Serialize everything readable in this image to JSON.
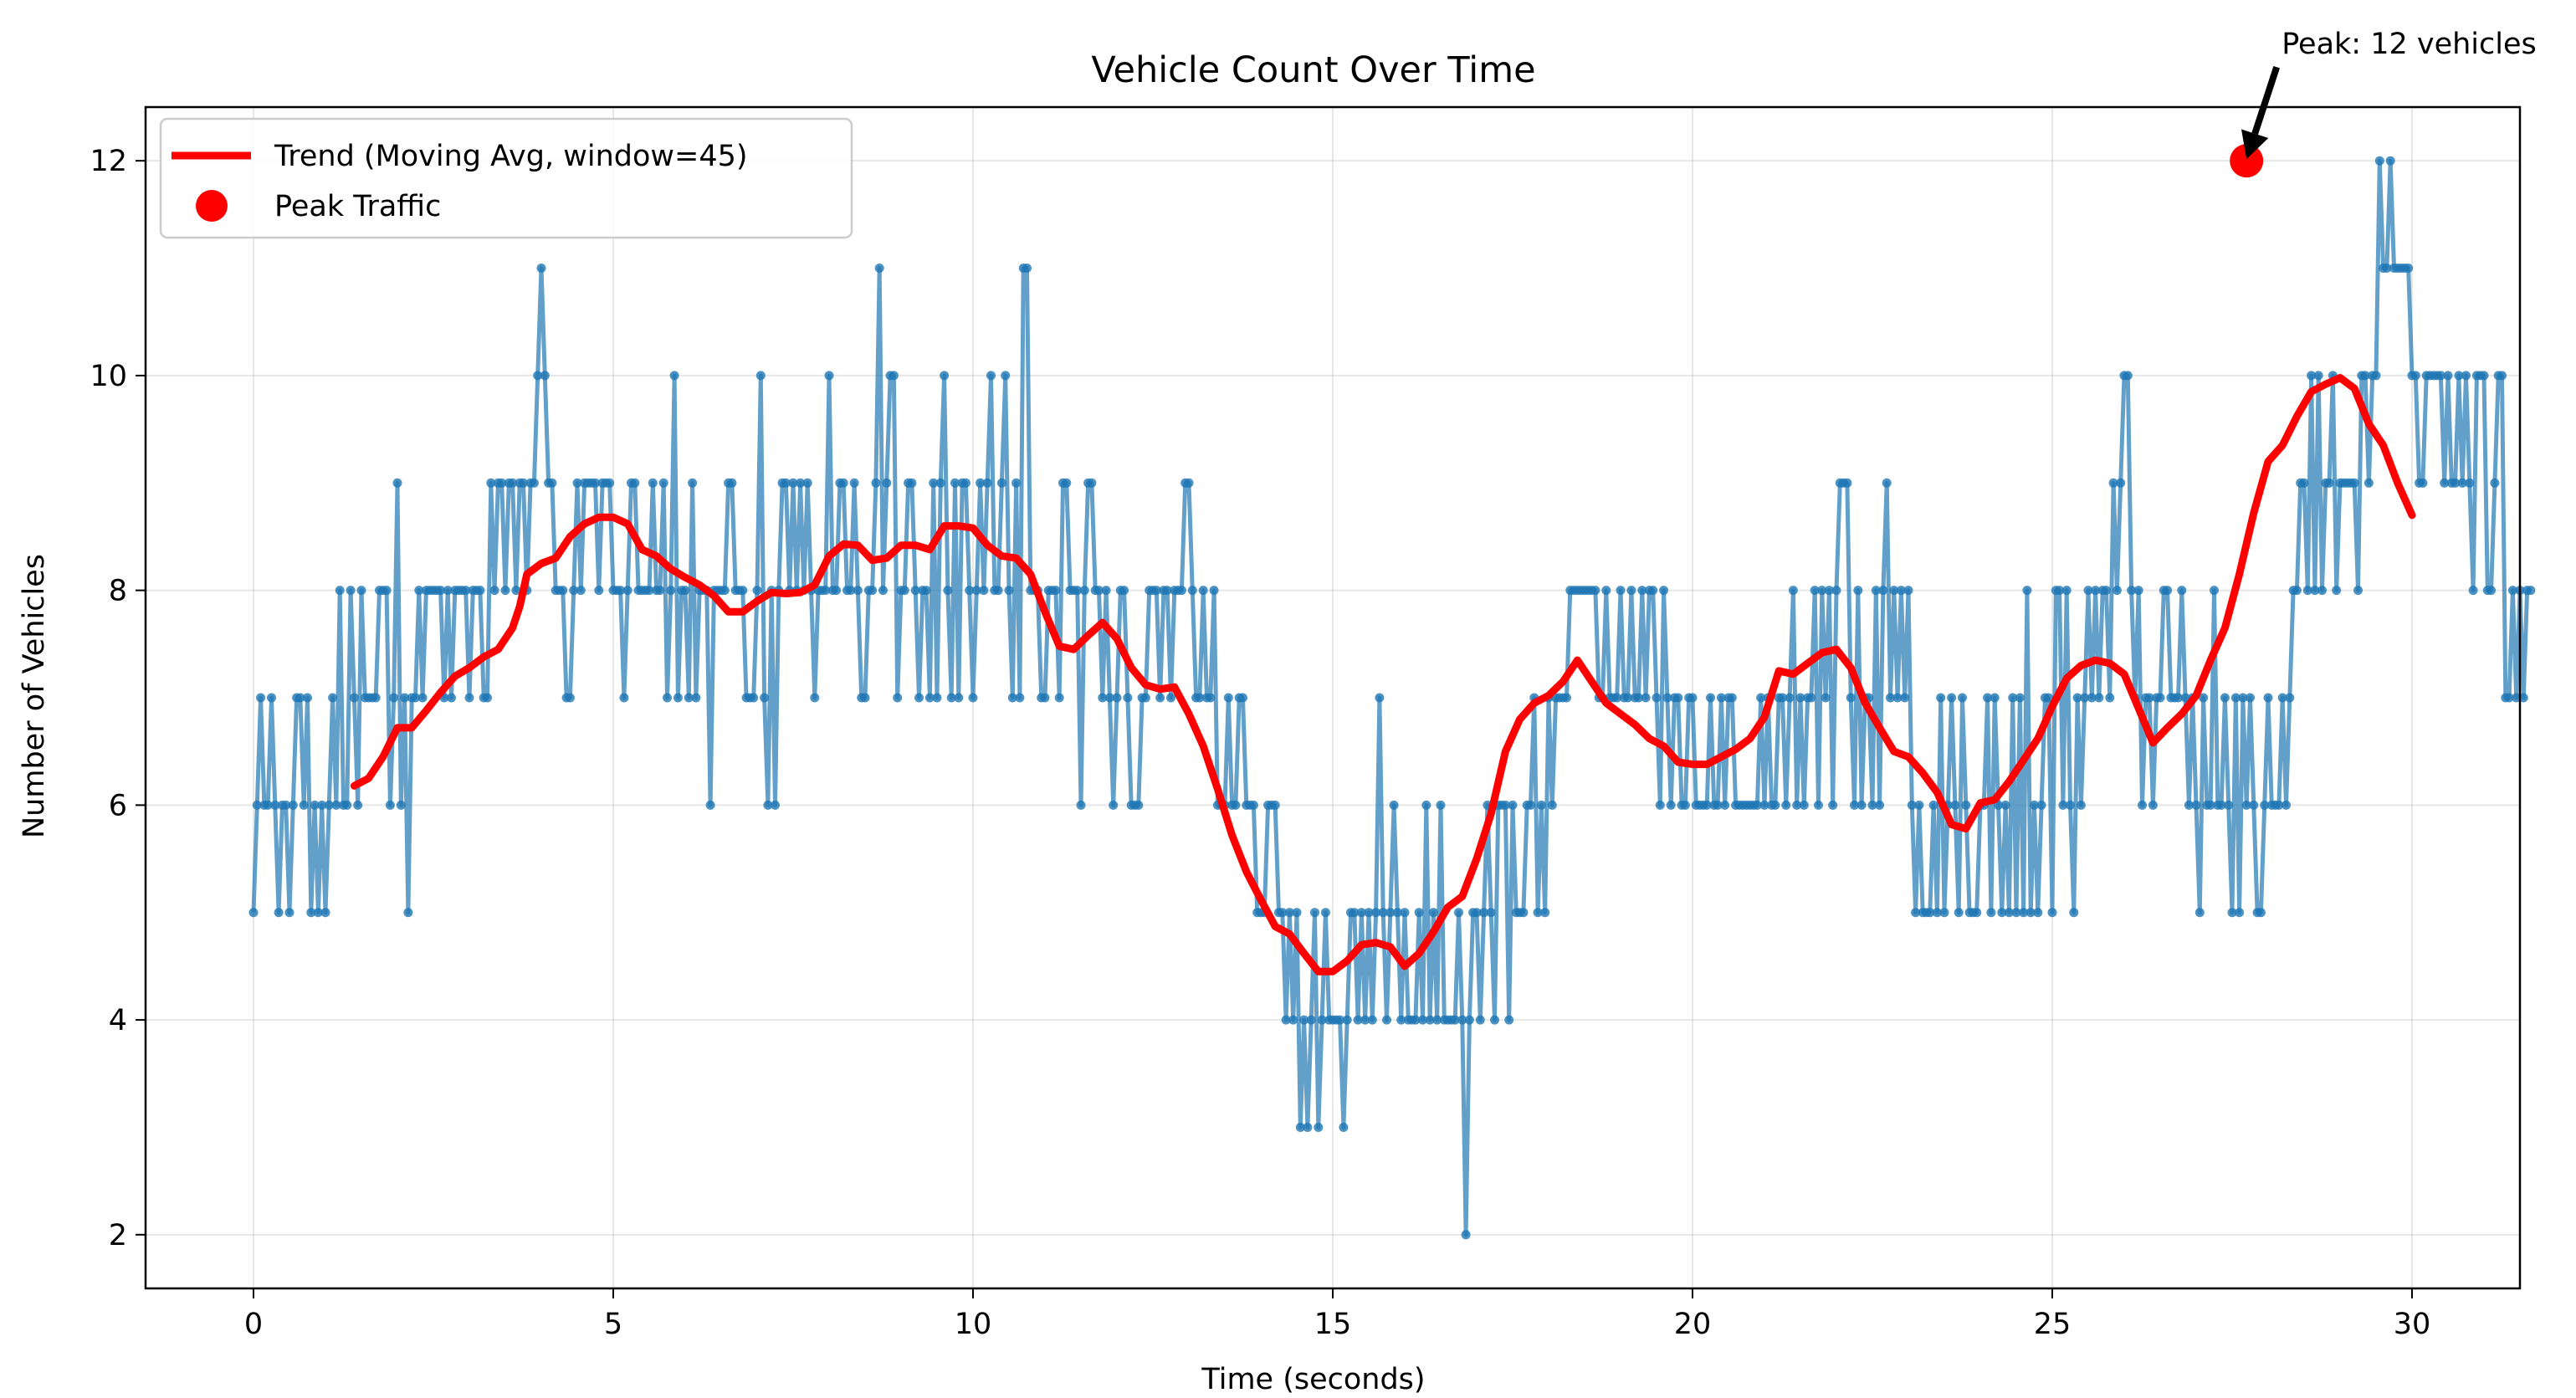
{
  "chart_data": {
    "type": "line",
    "title": "Vehicle Count Over Time",
    "xlabel": "Time (seconds)",
    "ylabel": "Number of Vehicles",
    "xlim": [
      -1.5,
      31.5
    ],
    "ylim": [
      1.5,
      12.5
    ],
    "x_ticks": [
      0,
      5,
      10,
      15,
      20,
      25,
      30
    ],
    "x_tick_labels": [
      "0",
      "5",
      "10",
      "15",
      "20",
      "25",
      "30"
    ],
    "y_ticks": [
      2,
      4,
      6,
      8,
      10,
      12
    ],
    "y_tick_labels": [
      "2",
      "4",
      "6",
      "8",
      "10",
      "12"
    ],
    "grid": true,
    "legend_position": "top-left",
    "legend": [
      {
        "label": "Trend (Moving Avg, window=45)",
        "marker": "line",
        "color": "#ff0000"
      },
      {
        "label": "Peak Traffic",
        "marker": "circle",
        "color": "#ff0000"
      }
    ],
    "colors": {
      "counts": "#1f77b4",
      "trend": "#ff0000",
      "peak": "#ff0000"
    },
    "series": [
      {
        "role": "counts",
        "x_start": 0,
        "x_step": 0.05,
        "values": [
          5,
          6,
          7,
          6,
          6,
          7,
          6,
          5,
          6,
          6,
          5,
          6,
          7,
          7,
          6,
          7,
          5,
          6,
          5,
          6,
          5,
          6,
          7,
          6,
          8,
          6,
          6,
          8,
          7,
          6,
          8,
          7,
          7,
          7,
          7,
          8,
          8,
          8,
          6,
          7,
          9,
          6,
          7,
          5,
          7,
          7,
          8,
          7,
          8,
          8,
          8,
          8,
          8,
          7,
          8,
          7,
          8,
          8,
          8,
          8,
          7,
          8,
          8,
          8,
          7,
          7,
          9,
          8,
          9,
          9,
          8,
          9,
          9,
          8,
          9,
          9,
          8,
          9,
          9,
          10,
          11,
          10,
          9,
          9,
          8,
          8,
          8,
          7,
          7,
          8,
          9,
          8,
          9,
          9,
          9,
          9,
          8,
          9,
          9,
          9,
          8,
          8,
          8,
          7,
          8,
          9,
          9,
          8,
          8,
          8,
          8,
          9,
          8,
          8,
          9,
          7,
          8,
          10,
          7,
          8,
          8,
          7,
          9,
          7,
          8,
          8,
          8,
          6,
          8,
          8,
          8,
          8,
          9,
          9,
          8,
          8,
          8,
          7,
          7,
          7,
          8,
          10,
          7,
          6,
          8,
          6,
          8,
          9,
          9,
          8,
          9,
          8,
          9,
          8,
          9,
          8,
          7,
          8,
          8,
          8,
          10,
          8,
          8,
          9,
          9,
          8,
          8,
          9,
          8,
          7,
          7,
          8,
          8,
          9,
          11,
          8,
          9,
          10,
          10,
          7,
          8,
          8,
          9,
          9,
          8,
          7,
          8,
          8,
          7,
          9,
          7,
          9,
          10,
          8,
          7,
          9,
          7,
          9,
          9,
          8,
          7,
          8,
          9,
          8,
          9,
          10,
          8,
          8,
          9,
          10,
          8,
          7,
          9,
          7,
          11,
          11,
          8,
          8,
          8,
          7,
          7,
          8,
          8,
          8,
          7,
          9,
          9,
          8,
          8,
          8,
          6,
          8,
          9,
          9,
          8,
          8,
          7,
          8,
          7,
          6,
          7,
          8,
          8,
          7,
          6,
          6,
          6,
          7,
          7,
          8,
          8,
          8,
          7,
          8,
          8,
          7,
          8,
          8,
          8,
          9,
          9,
          8,
          7,
          7,
          8,
          7,
          7,
          8,
          6,
          6,
          6,
          7,
          6,
          6,
          7,
          7,
          6,
          6,
          6,
          5,
          5,
          5,
          6,
          6,
          6,
          5,
          5,
          4,
          5,
          4,
          5,
          3,
          4,
          3,
          4,
          5,
          3,
          4,
          5,
          4,
          4,
          4,
          4,
          3,
          4,
          5,
          5,
          4,
          5,
          4,
          5,
          4,
          5,
          7,
          5,
          4,
          5,
          6,
          5,
          4,
          5,
          4,
          4,
          4,
          5,
          4,
          6,
          4,
          5,
          4,
          6,
          4,
          4,
          4,
          4,
          5,
          4,
          2,
          4,
          5,
          5,
          4,
          5,
          6,
          5,
          4,
          6,
          6,
          6,
          4,
          6,
          5,
          5,
          5,
          6,
          6,
          7,
          5,
          6,
          5,
          7,
          6,
          7,
          7,
          7,
          7,
          8,
          8,
          8,
          8,
          8,
          8,
          8,
          8,
          7,
          7,
          8,
          7,
          7,
          7,
          8,
          7,
          7,
          8,
          7,
          7,
          8,
          7,
          8,
          8,
          7,
          6,
          8,
          7,
          6,
          7,
          7,
          6,
          6,
          7,
          7,
          6,
          6,
          6,
          6,
          7,
          6,
          6,
          7,
          6,
          7,
          7,
          6,
          6,
          6,
          6,
          6,
          6,
          6,
          7,
          6,
          7,
          6,
          6,
          7,
          7,
          6,
          7,
          8,
          6,
          7,
          6,
          7,
          7,
          8,
          6,
          8,
          7,
          8,
          6,
          8,
          9,
          9,
          9,
          7,
          6,
          8,
          6,
          7,
          7,
          6,
          8,
          6,
          8,
          9,
          7,
          8,
          7,
          8,
          7,
          8,
          6,
          5,
          6,
          5,
          5,
          5,
          6,
          5,
          7,
          5,
          6,
          7,
          6,
          5,
          7,
          6,
          5,
          5,
          5,
          6,
          6,
          7,
          5,
          7,
          6,
          5,
          6,
          5,
          7,
          5,
          7,
          5,
          8,
          5,
          6,
          5,
          6,
          7,
          7,
          5,
          8,
          8,
          6,
          8,
          6,
          5,
          7,
          6,
          7,
          8,
          7,
          8,
          7,
          8,
          8,
          7,
          9,
          8,
          9,
          10,
          10,
          8,
          7,
          8,
          6,
          7,
          7,
          6,
          7,
          7,
          8,
          8,
          7,
          7,
          7,
          8,
          7,
          6,
          7,
          6,
          5,
          7,
          6,
          6,
          8,
          6,
          6,
          7,
          6,
          5,
          7,
          5,
          7,
          6,
          7,
          6,
          5,
          5,
          6,
          7,
          6,
          6,
          6,
          7,
          6,
          7,
          8,
          8,
          9,
          9,
          8,
          10,
          8,
          10,
          8,
          9,
          9,
          10,
          8,
          9,
          9,
          9,
          9,
          9,
          8,
          10,
          10,
          9,
          10,
          10,
          12,
          11,
          11,
          12,
          11,
          11,
          11,
          11,
          11,
          10,
          10,
          9,
          9,
          10,
          10,
          10,
          10,
          10,
          9,
          10,
          9,
          9,
          10,
          9,
          10,
          9,
          8,
          10,
          10,
          10,
          8,
          8,
          9,
          10,
          10,
          7,
          7,
          8,
          7,
          8,
          7,
          8,
          8
        ]
      },
      {
        "name": "Trend (Moving Avg, window=45)",
        "role": "trend",
        "points": [
          [
            1.4,
            6.18
          ],
          [
            1.6,
            6.25
          ],
          [
            1.8,
            6.45
          ],
          [
            2.0,
            6.72
          ],
          [
            2.2,
            6.72
          ],
          [
            2.4,
            6.88
          ],
          [
            2.6,
            7.05
          ],
          [
            2.8,
            7.2
          ],
          [
            3.0,
            7.28
          ],
          [
            3.2,
            7.38
          ],
          [
            3.4,
            7.45
          ],
          [
            3.6,
            7.65
          ],
          [
            3.7,
            7.85
          ],
          [
            3.8,
            8.15
          ],
          [
            4.0,
            8.25
          ],
          [
            4.2,
            8.3
          ],
          [
            4.4,
            8.5
          ],
          [
            4.6,
            8.62
          ],
          [
            4.8,
            8.68
          ],
          [
            5.0,
            8.68
          ],
          [
            5.2,
            8.62
          ],
          [
            5.4,
            8.38
          ],
          [
            5.6,
            8.32
          ],
          [
            5.8,
            8.2
          ],
          [
            6.0,
            8.12
          ],
          [
            6.2,
            8.05
          ],
          [
            6.4,
            7.95
          ],
          [
            6.6,
            7.8
          ],
          [
            6.8,
            7.8
          ],
          [
            7.0,
            7.9
          ],
          [
            7.2,
            7.98
          ],
          [
            7.4,
            7.97
          ],
          [
            7.6,
            7.98
          ],
          [
            7.8,
            8.05
          ],
          [
            8.0,
            8.32
          ],
          [
            8.2,
            8.43
          ],
          [
            8.4,
            8.42
          ],
          [
            8.6,
            8.28
          ],
          [
            8.8,
            8.3
          ],
          [
            9.0,
            8.42
          ],
          [
            9.2,
            8.42
          ],
          [
            9.4,
            8.38
          ],
          [
            9.6,
            8.6
          ],
          [
            9.8,
            8.6
          ],
          [
            10.0,
            8.58
          ],
          [
            10.2,
            8.42
          ],
          [
            10.4,
            8.32
          ],
          [
            10.6,
            8.3
          ],
          [
            10.8,
            8.15
          ],
          [
            11.0,
            7.8
          ],
          [
            11.2,
            7.48
          ],
          [
            11.4,
            7.45
          ],
          [
            11.6,
            7.58
          ],
          [
            11.8,
            7.7
          ],
          [
            12.0,
            7.55
          ],
          [
            12.2,
            7.28
          ],
          [
            12.4,
            7.12
          ],
          [
            12.6,
            7.08
          ],
          [
            12.8,
            7.1
          ],
          [
            13.0,
            6.85
          ],
          [
            13.2,
            6.55
          ],
          [
            13.4,
            6.15
          ],
          [
            13.6,
            5.72
          ],
          [
            13.8,
            5.38
          ],
          [
            14.0,
            5.12
          ],
          [
            14.2,
            4.87
          ],
          [
            14.4,
            4.8
          ],
          [
            14.6,
            4.62
          ],
          [
            14.8,
            4.45
          ],
          [
            15.0,
            4.45
          ],
          [
            15.2,
            4.55
          ],
          [
            15.4,
            4.7
          ],
          [
            15.6,
            4.72
          ],
          [
            15.8,
            4.68
          ],
          [
            16.0,
            4.5
          ],
          [
            16.2,
            4.62
          ],
          [
            16.4,
            4.82
          ],
          [
            16.6,
            5.05
          ],
          [
            16.8,
            5.15
          ],
          [
            17.0,
            5.5
          ],
          [
            17.2,
            5.92
          ],
          [
            17.4,
            6.5
          ],
          [
            17.6,
            6.8
          ],
          [
            17.8,
            6.95
          ],
          [
            18.0,
            7.02
          ],
          [
            18.2,
            7.15
          ],
          [
            18.4,
            7.35
          ],
          [
            18.6,
            7.15
          ],
          [
            18.8,
            6.95
          ],
          [
            19.0,
            6.85
          ],
          [
            19.2,
            6.75
          ],
          [
            19.4,
            6.62
          ],
          [
            19.6,
            6.55
          ],
          [
            19.8,
            6.4
          ],
          [
            20.0,
            6.38
          ],
          [
            20.2,
            6.38
          ],
          [
            20.4,
            6.45
          ],
          [
            20.6,
            6.52
          ],
          [
            20.8,
            6.62
          ],
          [
            21.0,
            6.82
          ],
          [
            21.2,
            7.25
          ],
          [
            21.4,
            7.22
          ],
          [
            21.6,
            7.32
          ],
          [
            21.8,
            7.42
          ],
          [
            22.0,
            7.45
          ],
          [
            22.2,
            7.28
          ],
          [
            22.4,
            6.95
          ],
          [
            22.6,
            6.72
          ],
          [
            22.8,
            6.5
          ],
          [
            23.0,
            6.45
          ],
          [
            23.2,
            6.3
          ],
          [
            23.4,
            6.12
          ],
          [
            23.6,
            5.82
          ],
          [
            23.8,
            5.78
          ],
          [
            24.0,
            6.02
          ],
          [
            24.2,
            6.05
          ],
          [
            24.4,
            6.22
          ],
          [
            24.6,
            6.42
          ],
          [
            24.8,
            6.62
          ],
          [
            25.0,
            6.92
          ],
          [
            25.2,
            7.18
          ],
          [
            25.4,
            7.3
          ],
          [
            25.6,
            7.35
          ],
          [
            25.8,
            7.32
          ],
          [
            26.0,
            7.22
          ],
          [
            26.2,
            6.9
          ],
          [
            26.4,
            6.58
          ],
          [
            26.6,
            6.72
          ],
          [
            26.8,
            6.85
          ],
          [
            27.0,
            7.02
          ],
          [
            27.2,
            7.35
          ],
          [
            27.4,
            7.65
          ],
          [
            27.6,
            8.15
          ],
          [
            27.8,
            8.72
          ],
          [
            28.0,
            9.2
          ],
          [
            28.2,
            9.35
          ],
          [
            28.4,
            9.62
          ],
          [
            28.6,
            9.85
          ],
          [
            28.8,
            9.92
          ],
          [
            29.0,
            9.98
          ],
          [
            29.2,
            9.88
          ],
          [
            29.4,
            9.55
          ],
          [
            29.6,
            9.35
          ],
          [
            29.8,
            9.0
          ],
          [
            30.0,
            8.7
          ]
        ]
      }
    ],
    "peak": {
      "x": 27.7,
      "y": 12,
      "name": "Peak Traffic"
    },
    "annotation": {
      "text": "Peak: 12 vehicles"
    }
  }
}
